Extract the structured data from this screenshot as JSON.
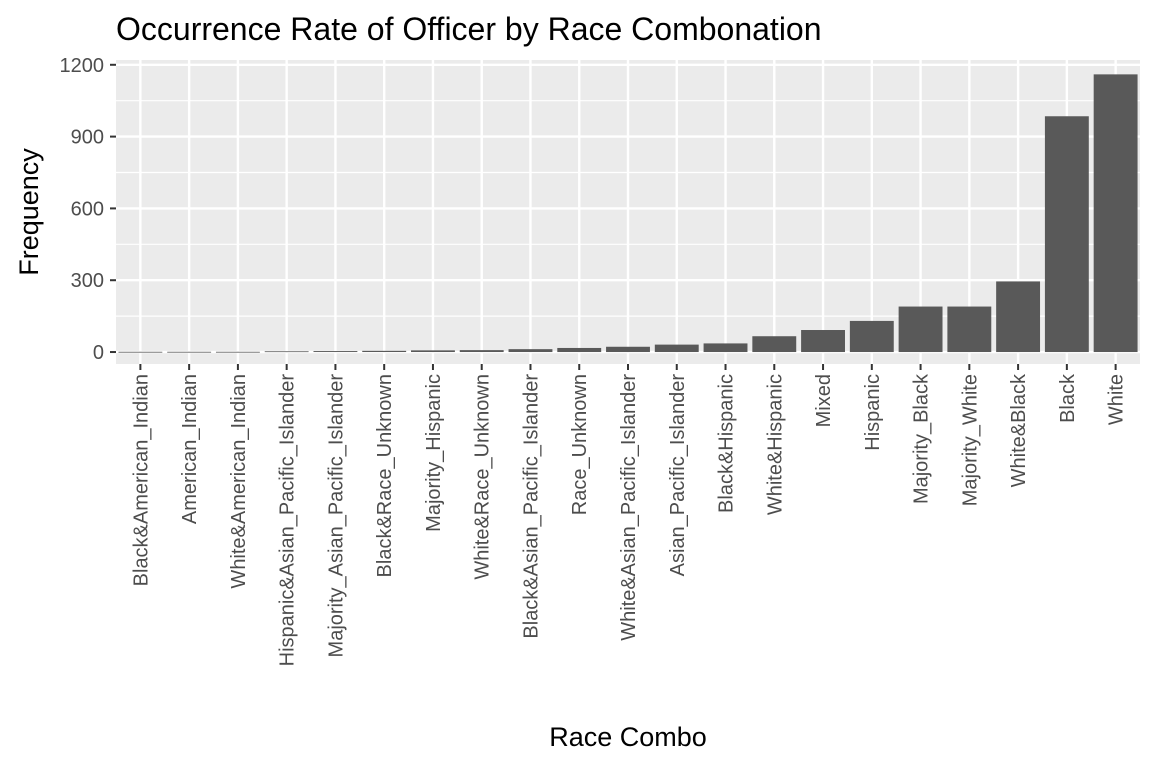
{
  "chart_data": {
    "type": "bar",
    "title": "Occurrence Rate of Officer by Race Combonation",
    "xlabel": "Race Combo",
    "ylabel": "Frequency",
    "ylim": [
      -50,
      1220
    ],
    "yticks": [
      0,
      300,
      600,
      900,
      1200
    ],
    "grid": true,
    "legend": "none",
    "colors": {
      "bar": "#595959",
      "panel": "#ebebeb",
      "grid": "#ffffff",
      "tick": "#333333"
    },
    "categories": [
      "Black&American_Indian",
      "American_Indian",
      "White&American_Indian",
      "Hispanic&Asian_Pacific_Islander",
      "Majority_Asian_Pacific_Islander",
      "Black&Race_Unknown",
      "Majority_Hispanic",
      "White&Race_Unknown",
      "Black&Asian_Pacific_Islander",
      "Race_Unknown",
      "White&Asian_Pacific_Islander",
      "Asian_Pacific_Islander",
      "Black&Hispanic",
      "White&Hispanic",
      "Mixed",
      "Hispanic",
      "Majority_Black",
      "Majority_White",
      "White&Black",
      "Black",
      "White"
    ],
    "values": [
      1,
      1,
      1,
      3,
      4,
      5,
      7,
      8,
      12,
      17,
      22,
      31,
      36,
      66,
      92,
      130,
      190,
      190,
      295,
      985,
      1160
    ]
  }
}
